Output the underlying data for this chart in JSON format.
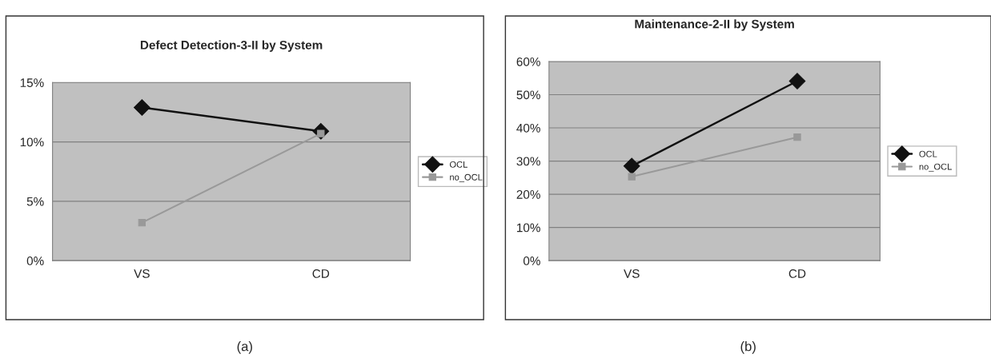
{
  "chart_data": [
    {
      "type": "line",
      "title": "Defect Detection-3-II by System",
      "categories": [
        "VS",
        "CD"
      ],
      "series": [
        {
          "name": "OCL",
          "color": "#111111",
          "marker": "diamond",
          "values": [
            12.9,
            10.9
          ]
        },
        {
          "name": "no_OCL",
          "color": "#999999",
          "marker": "square",
          "values": [
            3.2,
            10.7
          ]
        }
      ],
      "ylim": [
        0,
        15
      ],
      "yticks": [
        {
          "value": 0,
          "label": "0%"
        },
        {
          "value": 5,
          "label": "5%"
        },
        {
          "value": 10,
          "label": "10%"
        },
        {
          "value": 15,
          "label": "15%"
        }
      ],
      "grid": "y",
      "legend": "right",
      "annotations": [
        "(a)"
      ]
    },
    {
      "type": "line",
      "title": "Maintenance-2-II by System",
      "categories": [
        "VS",
        "CD"
      ],
      "series": [
        {
          "name": "OCL",
          "color": "#111111",
          "marker": "diamond",
          "values": [
            28.5,
            54.1
          ]
        },
        {
          "name": "no_OCL",
          "color": "#999999",
          "marker": "square",
          "values": [
            25.3,
            37.2
          ]
        }
      ],
      "ylim": [
        0,
        60
      ],
      "yticks": [
        {
          "value": 0,
          "label": "0%"
        },
        {
          "value": 10,
          "label": "10%"
        },
        {
          "value": 20,
          "label": "20%"
        },
        {
          "value": 30,
          "label": "30%"
        },
        {
          "value": 40,
          "label": "40%"
        },
        {
          "value": 50,
          "label": "50%"
        },
        {
          "value": 60,
          "label": "60%"
        }
      ],
      "grid": "y",
      "legend": "right",
      "annotations": [
        "(b)"
      ]
    }
  ]
}
